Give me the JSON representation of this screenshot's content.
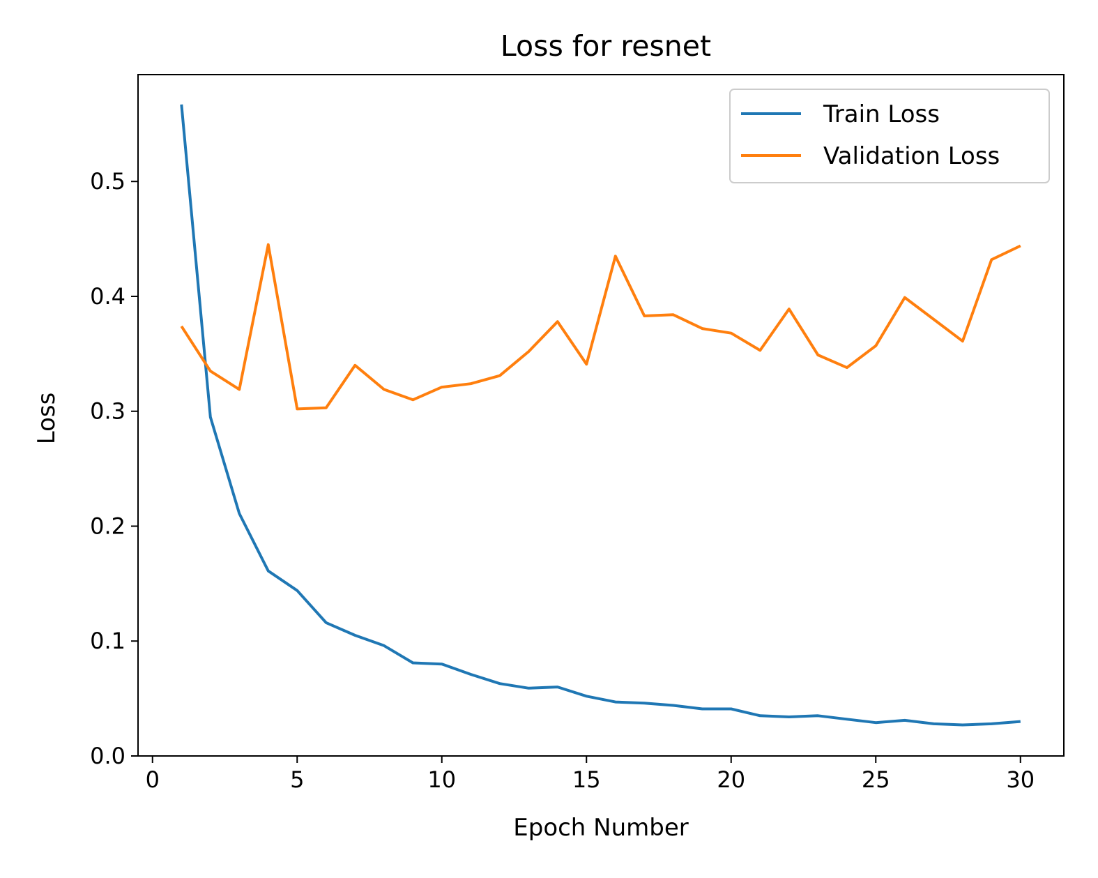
{
  "chart_data": {
    "type": "line",
    "title": "Loss for resnet",
    "xlabel": "Epoch Number",
    "ylabel": "Loss",
    "xlim": [
      -0.5,
      31.5
    ],
    "ylim": [
      0,
      0.593
    ],
    "xticks": [
      0,
      5,
      10,
      15,
      20,
      25,
      30
    ],
    "xtick_labels": [
      "0",
      "5",
      "10",
      "15",
      "20",
      "25",
      "30"
    ],
    "yticks": [
      0.0,
      0.1,
      0.2,
      0.3,
      0.4,
      0.5
    ],
    "ytick_labels": [
      "0.0",
      "0.1",
      "0.2",
      "0.3",
      "0.4",
      "0.5"
    ],
    "grid": false,
    "legend_position": "top-right",
    "x": [
      1,
      2,
      3,
      4,
      5,
      6,
      7,
      8,
      9,
      10,
      11,
      12,
      13,
      14,
      15,
      16,
      17,
      18,
      19,
      20,
      21,
      22,
      23,
      24,
      25,
      26,
      27,
      28,
      29,
      30
    ],
    "series": [
      {
        "name": "Train Loss",
        "color": "#1f77b4",
        "values": [
          0.567,
          0.295,
          0.211,
          0.161,
          0.144,
          0.116,
          0.105,
          0.096,
          0.081,
          0.08,
          0.071,
          0.063,
          0.059,
          0.06,
          0.052,
          0.047,
          0.046,
          0.044,
          0.041,
          0.041,
          0.035,
          0.034,
          0.035,
          0.032,
          0.029,
          0.031,
          0.028,
          0.027,
          0.028,
          0.03
        ]
      },
      {
        "name": "Validation Loss",
        "color": "#ff7f0e",
        "values": [
          0.374,
          0.335,
          0.319,
          0.445,
          0.302,
          0.303,
          0.34,
          0.319,
          0.31,
          0.321,
          0.324,
          0.331,
          0.352,
          0.378,
          0.341,
          0.435,
          0.383,
          0.384,
          0.372,
          0.368,
          0.353,
          0.389,
          0.349,
          0.338,
          0.357,
          0.399,
          0.38,
          0.361,
          0.432,
          0.444
        ]
      }
    ]
  }
}
